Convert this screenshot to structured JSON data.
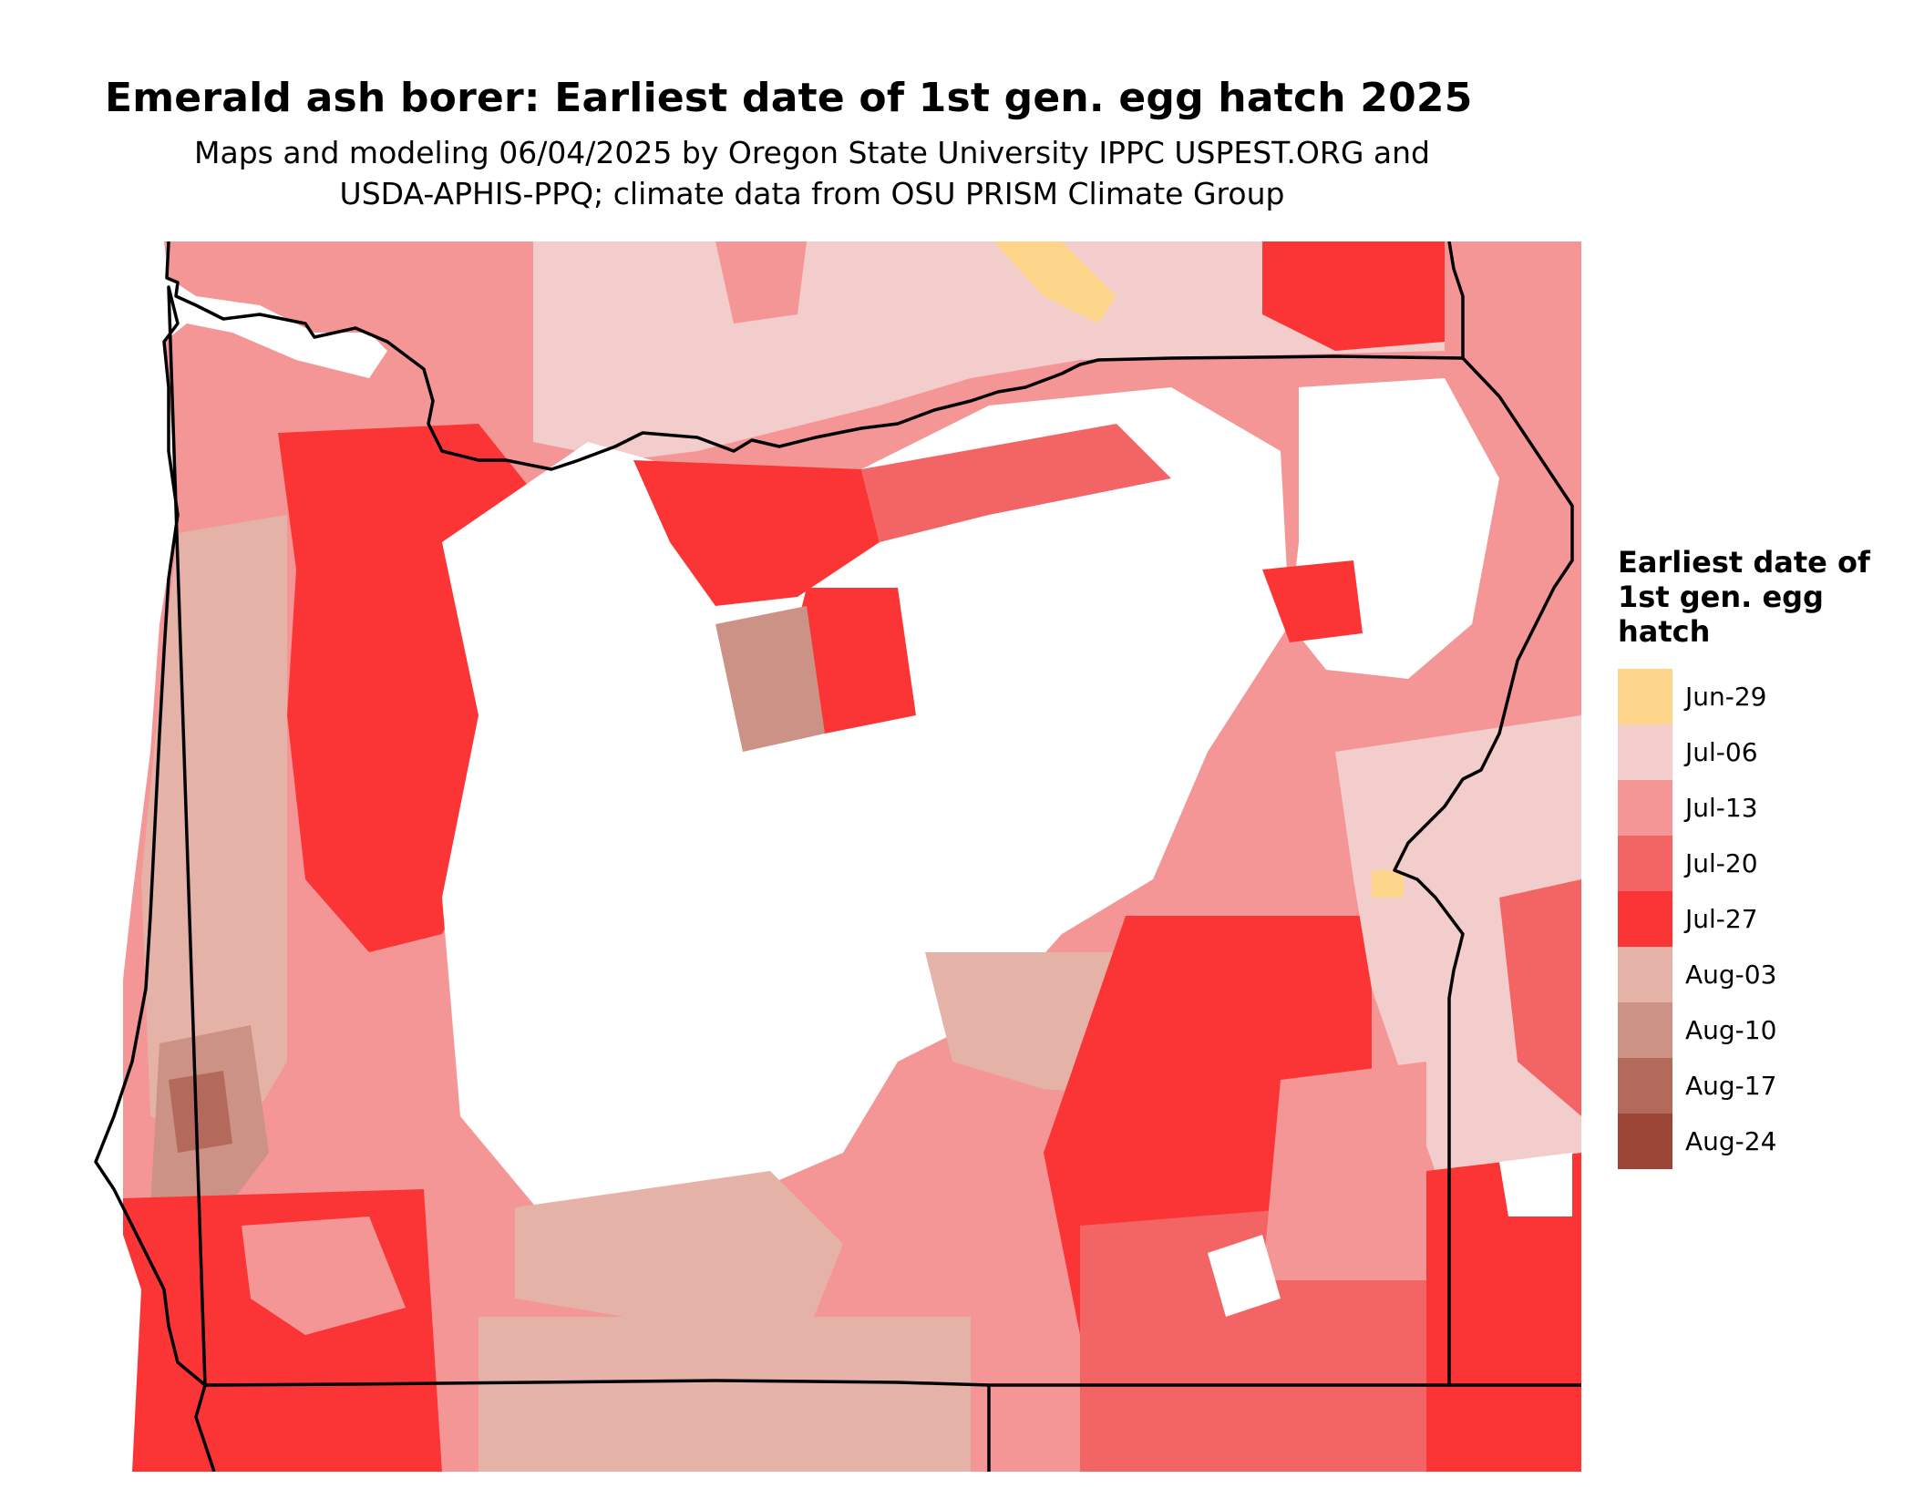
{
  "title": "Emerald ash borer: Earliest date of 1st gen. egg hatch 2025",
  "subtitle_line1": "Maps and modeling 06/04/2025 by Oregon State University IPPC USPEST.ORG and",
  "subtitle_line2": "USDA-APHIS-PPQ; climate data from OSU PRISM Climate Group",
  "legend": {
    "title": "Earliest date of 1st gen. egg hatch",
    "items": [
      {
        "label": "Jun-29",
        "color": "#fdd68b"
      },
      {
        "label": "Jul-06",
        "color": "#f3cccc"
      },
      {
        "label": "Jul-13",
        "color": "#f49696"
      },
      {
        "label": "Jul-20",
        "color": "#f36464"
      },
      {
        "label": "Jul-27",
        "color": "#fb3535"
      },
      {
        "label": "Aug-03",
        "color": "#e5b2a8"
      },
      {
        "label": "Aug-10",
        "color": "#cc9285"
      },
      {
        "label": "Aug-17",
        "color": "#b36a5b"
      },
      {
        "label": "Aug-24",
        "color": "#9a4535"
      }
    ]
  },
  "colors": {
    "boundary": "#000000",
    "no_data": "#ffffff"
  }
}
